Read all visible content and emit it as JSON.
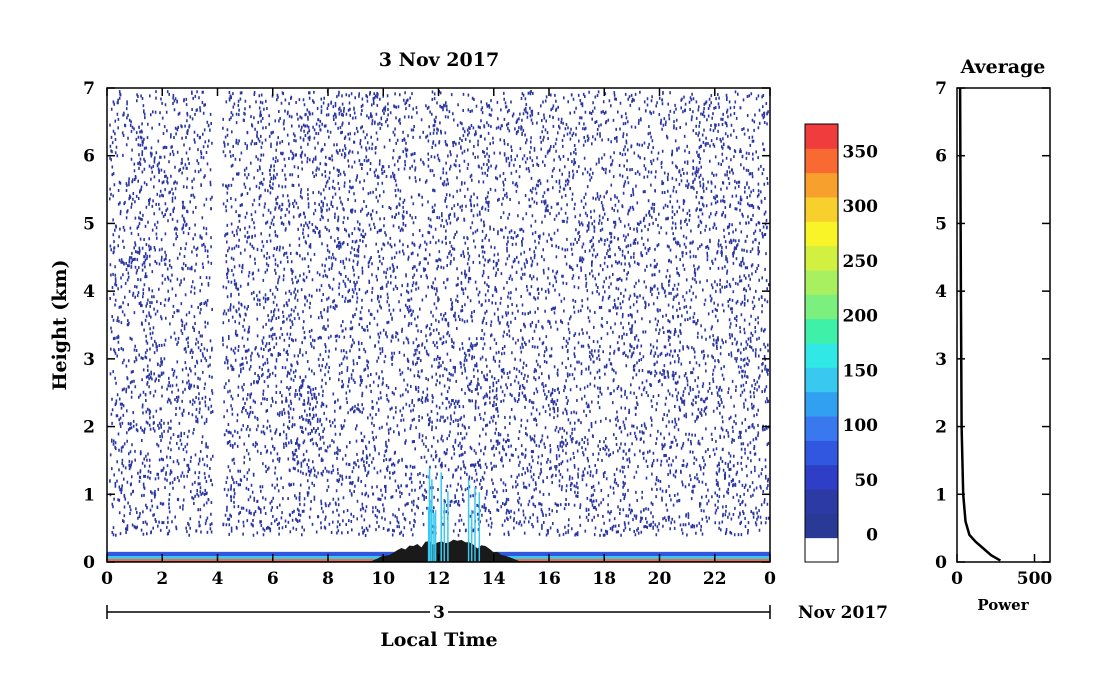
{
  "chart_data": [
    {
      "type": "heatmap",
      "title": "3 Nov 2017",
      "xlabel": "Local Time",
      "ylabel": "Height (km)",
      "xlim": [
        0,
        24
      ],
      "ylim": [
        0,
        7
      ],
      "x_ticks": [
        "0",
        "2",
        "4",
        "6",
        "8",
        "10",
        "12",
        "14",
        "16",
        "18",
        "20",
        "22",
        "0"
      ],
      "y_ticks": [
        "0",
        "1",
        "2",
        "3",
        "4",
        "5",
        "6",
        "7"
      ],
      "date_axis": {
        "day_label": "3",
        "month_label": "Nov 2017"
      },
      "colorbar": {
        "min": -25,
        "max": 375,
        "tick_labels": [
          "0",
          "50",
          "100",
          "150",
          "200",
          "250",
          "300",
          "350"
        ],
        "tick_values": [
          0,
          50,
          100,
          150,
          200,
          250,
          300,
          350
        ]
      },
      "features": [
        {
          "name": "near-surface layer",
          "x": [
            0,
            24
          ],
          "y_top_km": 0.15
        },
        {
          "name": "midday layer",
          "x": [
            9.5,
            15
          ],
          "y_top_km": 0.35
        },
        {
          "name": "convective spikes",
          "x": [
            11.5,
            13.5
          ],
          "y_top_km": 1.4
        }
      ]
    },
    {
      "type": "line",
      "title": "Average",
      "xlabel": "Power",
      "ylabel": "",
      "xlim": [
        0,
        600
      ],
      "ylim": [
        0,
        7
      ],
      "x_ticks": [
        "0",
        "500"
      ],
      "y_ticks": [
        "0",
        "1",
        "2",
        "3",
        "4",
        "5",
        "6",
        "7"
      ],
      "x": [
        280,
        220,
        170,
        120,
        80,
        55,
        40,
        30,
        25,
        20
      ],
      "y": [
        0.02,
        0.1,
        0.2,
        0.3,
        0.4,
        0.6,
        1.0,
        2.0,
        4.0,
        7.0
      ]
    }
  ],
  "colors": {
    "colorbar": [
      "#ffffff",
      "#283a96",
      "#2c3aa6",
      "#2f3ec6",
      "#3157e0",
      "#3a78f0",
      "#32a0f0",
      "#38c8f0",
      "#30e8e6",
      "#3ef0a8",
      "#7cf07e",
      "#a8f060",
      "#d2f040",
      "#f8f428",
      "#f8d02e",
      "#f8a02e",
      "#f86a32",
      "#f03c3c"
    ],
    "speckle": "#2b36a2",
    "frame": "#000000"
  }
}
